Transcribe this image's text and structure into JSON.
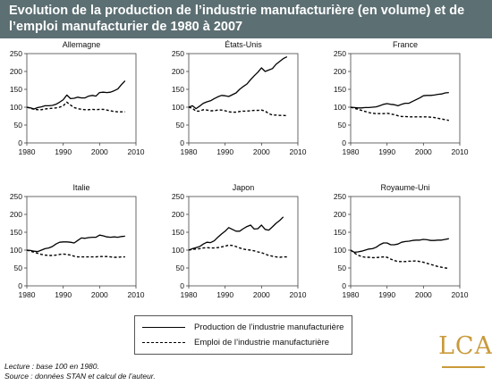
{
  "title": "Evolution de la production de l’industrie manufacturière (en volume) et de l’emploi manufacturier de 1980 à 2007",
  "legend": {
    "production": "Production de l’industrie manufacturière",
    "emploi": "Emploi de l’industrie manufacturière"
  },
  "note": {
    "line1": "Lecture : base 100 en 1980.",
    "line2": "Source : données STAN et calcul de l’auteur."
  },
  "logo": {
    "text": "LCA",
    "color": "#c99a3b"
  },
  "colors": {
    "header": "#5c6f73",
    "series": "#000000"
  },
  "chart_data": [
    {
      "type": "line",
      "title": "Allemagne",
      "xlim": [
        1980,
        2010
      ],
      "ylim": [
        0,
        250
      ],
      "xticks": [
        1980,
        1990,
        2000,
        2010
      ],
      "yticks": [
        0,
        50,
        100,
        150,
        200,
        250
      ],
      "x": [
        1980,
        1981,
        1982,
        1983,
        1984,
        1985,
        1986,
        1987,
        1988,
        1989,
        1990,
        1991,
        1992,
        1993,
        1994,
        1995,
        1996,
        1997,
        1998,
        1999,
        2000,
        2001,
        2002,
        2003,
        2004,
        2005,
        2006,
        2007
      ],
      "series": [
        {
          "name": "Production de l’industrie manufacturière",
          "style": "solid",
          "values": [
            100,
            98,
            95,
            99,
            101,
            104,
            104,
            105,
            108,
            114,
            121,
            134,
            124,
            125,
            128,
            126,
            126,
            131,
            133,
            131,
            141,
            142,
            141,
            142,
            146,
            151,
            163,
            174
          ]
        },
        {
          "name": "Emploi de l’industrie manufacturière",
          "style": "dashed",
          "values": [
            100,
            97,
            94,
            93,
            93,
            95,
            96,
            97,
            98,
            100,
            104,
            114,
            106,
            99,
            96,
            94,
            93,
            93,
            94,
            93,
            94,
            94,
            92,
            90,
            88,
            87,
            87,
            87
          ]
        }
      ]
    },
    {
      "type": "line",
      "title": "États-Unis",
      "xlim": [
        1980,
        2010
      ],
      "ylim": [
        0,
        250
      ],
      "xticks": [
        1980,
        1990,
        2000,
        2010
      ],
      "yticks": [
        0,
        50,
        100,
        150,
        200,
        250
      ],
      "x": [
        1980,
        1981,
        1982,
        1983,
        1984,
        1985,
        1986,
        1987,
        1988,
        1989,
        1990,
        1991,
        1992,
        1993,
        1994,
        1995,
        1996,
        1997,
        1998,
        1999,
        2000,
        2001,
        2002,
        2003,
        2004,
        2005,
        2006,
        2007
      ],
      "series": [
        {
          "name": "Production de l’industrie manufacturière",
          "style": "solid",
          "values": [
            100,
            104,
            96,
            103,
            111,
            115,
            118,
            124,
            129,
            133,
            132,
            130,
            135,
            140,
            150,
            158,
            165,
            177,
            188,
            198,
            210,
            200,
            204,
            208,
            220,
            228,
            236,
            241
          ]
        },
        {
          "name": "Emploi de l’industrie manufacturière",
          "style": "dashed",
          "values": [
            100,
            97,
            89,
            89,
            93,
            92,
            90,
            90,
            92,
            92,
            90,
            87,
            86,
            86,
            88,
            89,
            89,
            90,
            91,
            91,
            92,
            89,
            82,
            78,
            78,
            77,
            77,
            76
          ]
        }
      ]
    },
    {
      "type": "line",
      "title": "France",
      "xlim": [
        1980,
        2010
      ],
      "ylim": [
        0,
        250
      ],
      "xticks": [
        1980,
        1990,
        2000,
        2010
      ],
      "yticks": [
        0,
        50,
        100,
        150,
        200,
        250
      ],
      "x": [
        1980,
        1981,
        1982,
        1983,
        1984,
        1985,
        1986,
        1987,
        1988,
        1989,
        1990,
        1991,
        1992,
        1993,
        1994,
        1995,
        1996,
        1997,
        1998,
        1999,
        2000,
        2001,
        2002,
        2003,
        2004,
        2005,
        2006,
        2007
      ],
      "series": [
        {
          "name": "Production de l’industrie manufacturière",
          "style": "solid",
          "values": [
            100,
            99,
            98,
            98,
            99,
            99,
            100,
            101,
            104,
            108,
            110,
            108,
            107,
            104,
            108,
            111,
            111,
            116,
            121,
            126,
            132,
            133,
            133,
            134,
            136,
            137,
            140,
            141
          ]
        },
        {
          "name": "Emploi de l’industrie manufacturière",
          "style": "dashed",
          "values": [
            100,
            97,
            94,
            91,
            88,
            85,
            83,
            82,
            82,
            82,
            83,
            81,
            79,
            76,
            74,
            74,
            73,
            73,
            73,
            73,
            73,
            73,
            72,
            71,
            69,
            67,
            65,
            63
          ]
        }
      ]
    },
    {
      "type": "line",
      "title": "Italie",
      "xlim": [
        1980,
        2010
      ],
      "ylim": [
        0,
        250
      ],
      "xticks": [
        1980,
        1990,
        2000,
        2010
      ],
      "yticks": [
        0,
        50,
        100,
        150,
        200,
        250
      ],
      "x": [
        1980,
        1981,
        1982,
        1983,
        1984,
        1985,
        1986,
        1987,
        1988,
        1989,
        1990,
        1991,
        1992,
        1993,
        1994,
        1995,
        1996,
        1997,
        1998,
        1999,
        2000,
        2001,
        2002,
        2003,
        2004,
        2005,
        2006,
        2007
      ],
      "series": [
        {
          "name": "Production de l’industrie manufacturière",
          "style": "solid",
          "values": [
            100,
            99,
            97,
            96,
            100,
            104,
            106,
            110,
            117,
            122,
            123,
            123,
            122,
            120,
            127,
            134,
            133,
            135,
            136,
            136,
            142,
            140,
            137,
            136,
            137,
            136,
            138,
            139
          ]
        },
        {
          "name": "Emploi de l’industrie manufacturière",
          "style": "dashed",
          "values": [
            100,
            97,
            94,
            91,
            88,
            86,
            85,
            85,
            86,
            88,
            89,
            88,
            86,
            83,
            81,
            81,
            81,
            81,
            81,
            81,
            82,
            82,
            82,
            81,
            80,
            80,
            81,
            81
          ]
        }
      ]
    },
    {
      "type": "line",
      "title": "Japon",
      "xlim": [
        1980,
        2010
      ],
      "ylim": [
        0,
        250
      ],
      "xticks": [
        1980,
        1990,
        2000,
        2010
      ],
      "yticks": [
        0,
        50,
        100,
        150,
        200,
        250
      ],
      "x": [
        1980,
        1981,
        1982,
        1983,
        1984,
        1985,
        1986,
        1987,
        1988,
        1989,
        1990,
        1991,
        1992,
        1993,
        1994,
        1995,
        1996,
        1997,
        1998,
        1999,
        2000,
        2001,
        2002,
        2003,
        2004,
        2005,
        2006,
        2007
      ],
      "series": [
        {
          "name": "Production de l’industrie manufacturière",
          "style": "solid",
          "values": [
            100,
            104,
            107,
            110,
            117,
            122,
            121,
            126,
            136,
            145,
            153,
            163,
            158,
            153,
            153,
            160,
            166,
            170,
            159,
            160,
            170,
            158,
            156,
            165,
            175,
            183,
            193,
            null
          ]
        },
        {
          "name": "Emploi de l’industrie manufacturière",
          "style": "dashed",
          "values": [
            100,
            102,
            103,
            104,
            106,
            107,
            106,
            106,
            107,
            109,
            111,
            114,
            113,
            110,
            106,
            103,
            101,
            100,
            98,
            95,
            93,
            89,
            85,
            83,
            81,
            80,
            81,
            81
          ]
        }
      ]
    },
    {
      "type": "line",
      "title": "Royaume-Uni",
      "xlim": [
        1980,
        2010
      ],
      "ylim": [
        0,
        250
      ],
      "xticks": [
        1980,
        1990,
        2000,
        2010
      ],
      "yticks": [
        0,
        50,
        100,
        150,
        200,
        250
      ],
      "x": [
        1980,
        1981,
        1982,
        1983,
        1984,
        1985,
        1986,
        1987,
        1988,
        1989,
        1990,
        1991,
        1992,
        1993,
        1994,
        1995,
        1996,
        1997,
        1998,
        1999,
        2000,
        2001,
        2002,
        2003,
        2004,
        2005,
        2006,
        2007
      ],
      "series": [
        {
          "name": "Production de l’industrie manufacturière",
          "style": "solid",
          "values": [
            100,
            94,
            95,
            97,
            100,
            103,
            104,
            108,
            115,
            120,
            120,
            115,
            115,
            117,
            122,
            124,
            125,
            127,
            128,
            128,
            130,
            129,
            127,
            127,
            128,
            128,
            130,
            132
          ]
        },
        {
          "name": "Emploi de l’industrie manufacturière",
          "style": "dashed",
          "values": [
            100,
            92,
            86,
            82,
            80,
            80,
            79,
            79,
            80,
            81,
            80,
            75,
            71,
            68,
            68,
            68,
            69,
            69,
            70,
            68,
            66,
            63,
            60,
            57,
            54,
            52,
            50,
            49
          ]
        }
      ]
    }
  ]
}
